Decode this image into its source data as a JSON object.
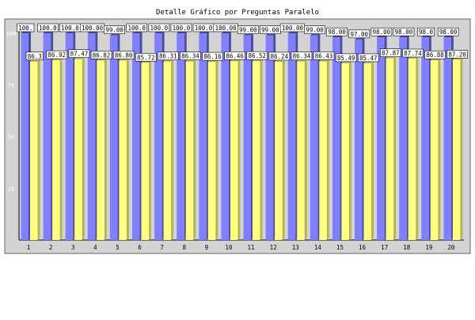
{
  "chart_data": {
    "type": "bar",
    "title": "Detalle Gráfico por Preguntas Paralelo",
    "xlabel": "",
    "ylabel": "",
    "categories": [
      "1",
      "2",
      "3",
      "4",
      "5",
      "6",
      "7",
      "8",
      "9",
      "10",
      "11",
      "12",
      "13",
      "14",
      "15",
      "16",
      "17",
      "18",
      "19",
      "20"
    ],
    "y_ticks": [
      "25",
      "50",
      "75",
      "100"
    ],
    "ylim": [
      0,
      100
    ],
    "grid": false,
    "legend": "none",
    "series": [
      {
        "values": [
          100.0,
          100.0,
          100.0,
          100.0,
          99.0,
          100.0,
          100.0,
          100.0,
          100.0,
          100.0,
          99.0,
          99.0,
          100.0,
          99.0,
          98.0,
          97.0,
          98.0,
          98.0,
          98.0,
          98.0
        ],
        "labels": [
          "100.",
          "100.0",
          "100.0",
          "100.00",
          "99.00",
          "100.0",
          "100.0",
          "100.0",
          "100.0",
          "100.00",
          "99.00",
          "99.00",
          "100.00",
          "99.00",
          "98.00",
          "97.00",
          "98.00",
          "98.00",
          "98.0",
          "98.00"
        ]
      },
      {
        "values": [
          86.3,
          86.92,
          87.47,
          86.82,
          86.8,
          85.72,
          86.31,
          86.34,
          86.16,
          86.46,
          86.52,
          86.24,
          86.34,
          86.43,
          85.49,
          85.47,
          87.87,
          87.74,
          86.88,
          87.2
        ],
        "labels": [
          "86.3",
          "86.92",
          "87.47",
          "86.82",
          "86.80",
          "85.72",
          "86.31",
          "86.34",
          "86.16",
          "86.46",
          "86.52",
          "86.24",
          "86.34",
          "86.43",
          "85.49",
          "85.47",
          "87.87",
          "87.74",
          "86.88",
          "87.20"
        ]
      }
    ],
    "colors": {
      "series1": "#8080ff",
      "series1_shadow": "#4d4d99",
      "series2": "#ffff80",
      "series2_shadow": "#b3b35a",
      "plot_bg": "#d3d3d3",
      "label_bg": "#ffffff"
    }
  }
}
